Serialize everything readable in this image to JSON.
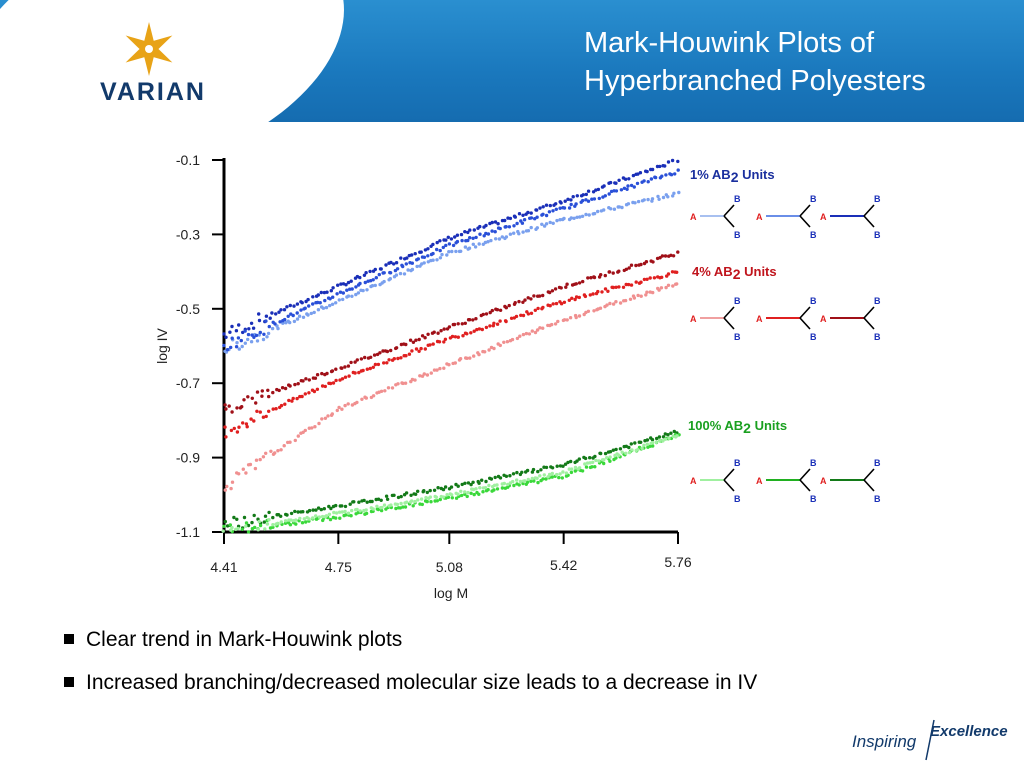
{
  "header": {
    "logo_text": "VARIAN",
    "logo_icon": "varian-star-logo",
    "title_line1": "Mark-Houwink Plots of",
    "title_line2": "Hyperbranched Polyesters",
    "colors": {
      "band": "#1a78bd",
      "logo_gold": "#e8a317",
      "logo_text": "#123a6b"
    }
  },
  "chart_data": {
    "type": "scatter",
    "xlabel": "log M",
    "ylabel": "log IV",
    "x_ticks": [
      "4.41",
      "4.75",
      "5.08",
      "5.42",
      "5.76"
    ],
    "y_ticks": [
      "-0.1",
      "-0.3",
      "-0.5",
      "-0.7",
      "-0.9",
      "-1.1"
    ],
    "xlim": [
      4.41,
      5.76
    ],
    "ylim": [
      -1.1,
      -0.1
    ],
    "groups": [
      {
        "label_prefix": "1% AB",
        "label_sub": "2",
        "label_suffix": " Units",
        "label_color": "#1a2f9e",
        "series": [
          {
            "color": "#1a2fb8",
            "x": [
              4.41,
              4.75,
              5.08,
              5.42,
              5.76
            ],
            "y": [
              -0.57,
              -0.44,
              -0.31,
              -0.21,
              -0.1
            ]
          },
          {
            "color": "#7aa0ee",
            "x": [
              4.41,
              4.75,
              5.08,
              5.42,
              5.76
            ],
            "y": [
              -0.61,
              -0.48,
              -0.35,
              -0.26,
              -0.19
            ]
          },
          {
            "color": "#2a50d8",
            "x": [
              4.41,
              4.75,
              5.08,
              5.42,
              5.76
            ],
            "y": [
              -0.6,
              -0.46,
              -0.33,
              -0.23,
              -0.13
            ]
          }
        ],
        "structures": [
          {
            "a": "A",
            "b1": "B",
            "b2": "B",
            "tail_color": "#a8c0f0"
          },
          {
            "a": "A",
            "b1": "B",
            "b2": "B",
            "tail_color": "#6a8ee8"
          },
          {
            "a": "A",
            "b1": "B",
            "b2": "B",
            "tail_color": "#1a2fb8"
          }
        ]
      },
      {
        "label_prefix": "4% AB",
        "label_sub": "2",
        "label_suffix": " Units",
        "label_color": "#c0141c",
        "series": [
          {
            "color": "#a01018",
            "x": [
              4.41,
              4.75,
              5.08,
              5.42,
              5.76
            ],
            "y": [
              -0.77,
              -0.66,
              -0.55,
              -0.44,
              -0.35
            ]
          },
          {
            "color": "#e02020",
            "x": [
              4.41,
              4.75,
              5.08,
              5.42,
              5.76
            ],
            "y": [
              -0.83,
              -0.69,
              -0.58,
              -0.48,
              -0.4
            ]
          },
          {
            "color": "#f09090",
            "x": [
              4.41,
              4.75,
              5.08,
              5.42,
              5.76
            ],
            "y": [
              -0.98,
              -0.77,
              -0.65,
              -0.53,
              -0.43
            ]
          }
        ],
        "structures": [
          {
            "a": "A",
            "b1": "B",
            "b2": "B",
            "tail_color": "#f0a0a0"
          },
          {
            "a": "A",
            "b1": "B",
            "b2": "B",
            "tail_color": "#e02020"
          },
          {
            "a": "A",
            "b1": "B",
            "b2": "B",
            "tail_color": "#a01018"
          }
        ]
      },
      {
        "label_prefix": "100% AB",
        "label_sub": "2",
        "label_suffix": " Units",
        "label_color": "#1aa020",
        "series": [
          {
            "color": "#137a18",
            "x": [
              4.41,
              4.75,
              5.08,
              5.42,
              5.76
            ],
            "y": [
              -1.08,
              -1.03,
              -0.98,
              -0.92,
              -0.83
            ]
          },
          {
            "color": "#3ad83a",
            "x": [
              4.41,
              4.75,
              5.08,
              5.42,
              5.76
            ],
            "y": [
              -1.1,
              -1.06,
              -1.01,
              -0.95,
              -0.84
            ]
          },
          {
            "color": "#a0f0a0",
            "x": [
              4.41,
              4.75,
              5.08,
              5.42,
              5.76
            ],
            "y": [
              -1.1,
              -1.05,
              -1.0,
              -0.94,
              -0.84
            ]
          }
        ],
        "structures": [
          {
            "a": "A",
            "b1": "B",
            "b2": "B",
            "tail_color": "#a0f0a0"
          },
          {
            "a": "A",
            "b1": "B",
            "b2": "B",
            "tail_color": "#20b020"
          },
          {
            "a": "A",
            "b1": "B",
            "b2": "B",
            "tail_color": "#137a18"
          }
        ]
      }
    ],
    "structure_colors": {
      "a_label": "#e02020",
      "b_label": "#1a2fb8",
      "branch": "#000000"
    }
  },
  "bullets": [
    "Clear trend in Mark-Houwink plots",
    "Increased branching/decreased molecular size leads to a decrease in IV"
  ],
  "footer": {
    "tagline_left": "Inspiring",
    "tagline_right": "Excellence",
    "tagline_color": "#123a6b"
  }
}
